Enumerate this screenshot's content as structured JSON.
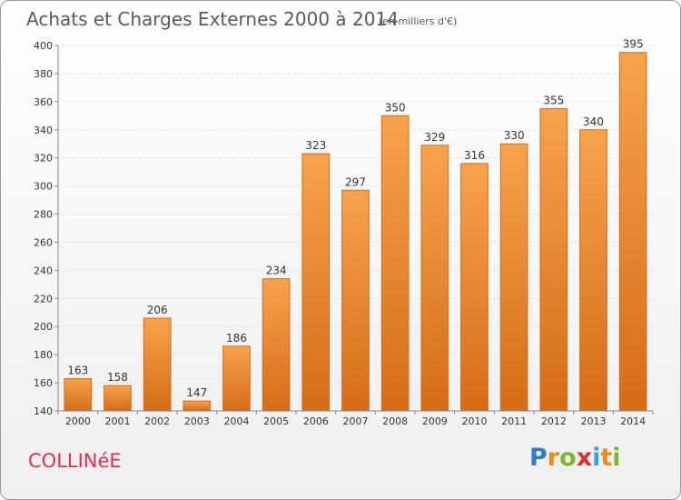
{
  "header": {
    "title": "Achats et Charges Externes 2000 à 2014",
    "subtitle": "(en milliers d'€)"
  },
  "footer": {
    "place": "COLLINéE",
    "brand_letters": [
      "P",
      "r",
      "o",
      "x",
      "i",
      "t",
      "i"
    ],
    "brand_colors": [
      "#2f7fc2",
      "#f08a1c",
      "#7cb82f",
      "#e22b2b",
      "#2fa7d8",
      "#f08a1c",
      "#7cb82f"
    ]
  },
  "colors": {
    "bar_top": "#f7a34c",
    "bar_bottom": "#d56c17",
    "title": "#5a5a5a",
    "place": "#e0314f"
  },
  "chart_data": {
    "type": "bar",
    "categories": [
      "2000",
      "2001",
      "2002",
      "2003",
      "2004",
      "2005",
      "2006",
      "2007",
      "2008",
      "2009",
      "2010",
      "2011",
      "2012",
      "2013",
      "2014"
    ],
    "values": [
      163,
      158,
      206,
      147,
      186,
      234,
      323,
      297,
      350,
      329,
      316,
      330,
      355,
      340,
      395
    ],
    "title": "Achats et Charges Externes 2000 à 2014",
    "subtitle": "(en milliers d'€)",
    "ylim": [
      140,
      400
    ],
    "yticks": [
      140,
      160,
      180,
      200,
      220,
      240,
      260,
      280,
      300,
      320,
      340,
      360,
      380,
      400
    ],
    "grid": true,
    "legend": "none"
  }
}
